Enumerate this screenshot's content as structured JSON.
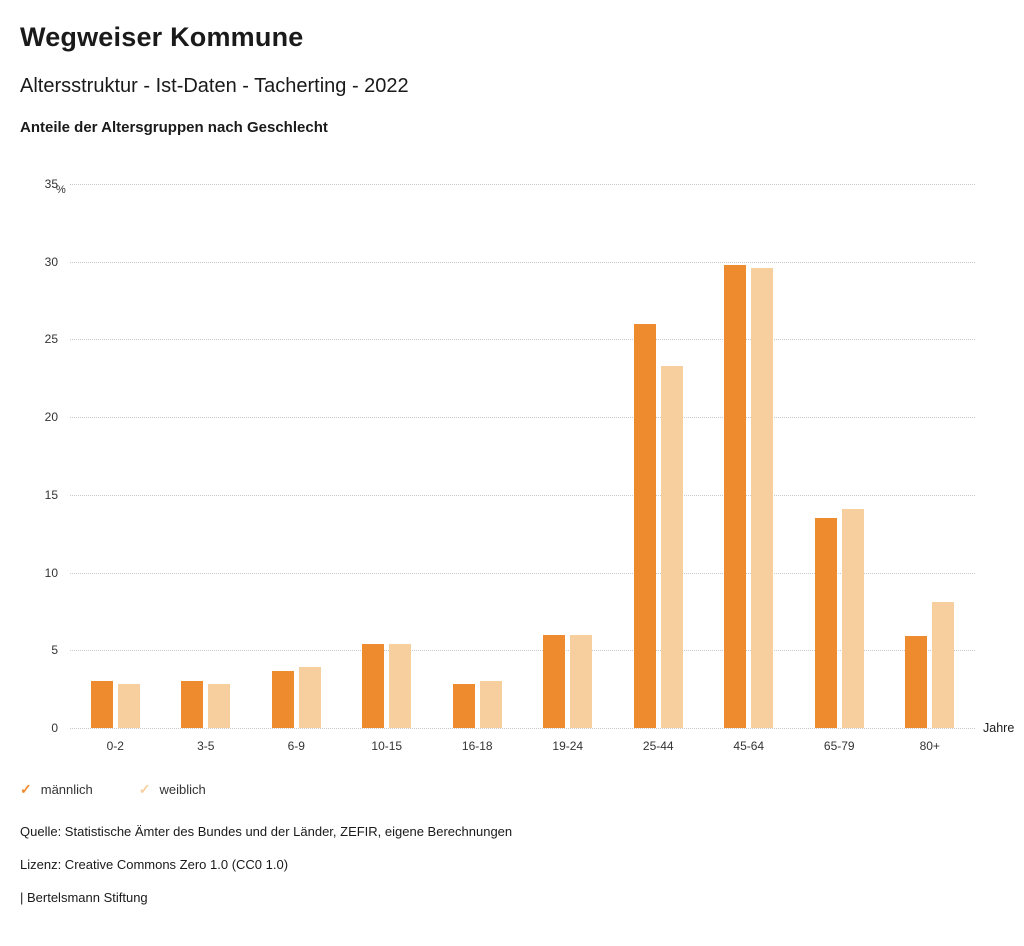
{
  "header": {
    "title": "Wegweiser Kommune",
    "subtitle": "Altersstruktur - Ist-Daten - Tacherting - 2022",
    "chart_heading": "Anteile der Altersgruppen nach Geschlecht"
  },
  "chart_data": {
    "type": "bar",
    "title": "Anteile der Altersgruppen nach Geschlecht",
    "categories": [
      "0-2",
      "3-5",
      "6-9",
      "10-15",
      "16-18",
      "19-24",
      "25-44",
      "45-64",
      "65-79",
      "80+"
    ],
    "series": [
      {
        "name": "männlich",
        "color": "#ef8b2f",
        "values": [
          3.0,
          3.0,
          3.7,
          5.4,
          2.8,
          6.0,
          26.0,
          29.8,
          13.5,
          5.9
        ]
      },
      {
        "name": "weiblich",
        "color": "#f7cf9f",
        "values": [
          2.8,
          2.8,
          3.9,
          5.4,
          3.0,
          6.0,
          23.3,
          29.6,
          14.1,
          8.1
        ]
      }
    ],
    "ylabel": "%",
    "xlabel": "Jahre",
    "ylim": [
      0,
      35
    ],
    "ytick_step": 5,
    "grid": true,
    "legend_position": "bottom",
    "legend_marker": "✓"
  },
  "footer": {
    "source": "Quelle: Statistische Ämter des Bundes und der Länder, ZEFIR, eigene Berechnungen",
    "license": "Lizenz: Creative Commons Zero 1.0 (CC0 1.0)",
    "brand": "| Bertelsmann Stiftung"
  }
}
